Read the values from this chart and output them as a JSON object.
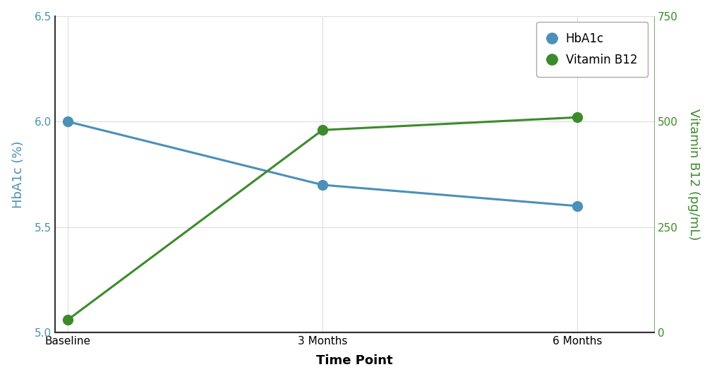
{
  "x_labels": [
    "Baseline",
    "3 Months",
    "6 Months"
  ],
  "x_values": [
    0,
    1,
    2
  ],
  "hba1c_values": [
    6.0,
    5.7,
    5.6
  ],
  "b12_values": [
    30,
    480,
    510
  ],
  "hba1c_color": "#4a90b8",
  "b12_color": "#3a8c2a",
  "hba1c_label": "HbA1c",
  "b12_label": "Vitamin B12",
  "xlabel": "Time Point",
  "ylabel_left": "HbA1c (%)",
  "ylabel_right": "Vitamin B12 (pg/mL)",
  "ylim_left": [
    5.0,
    6.5
  ],
  "ylim_right": [
    0,
    750
  ],
  "yticks_left": [
    5.0,
    5.5,
    6.0,
    6.5
  ],
  "yticks_right": [
    0,
    250,
    500,
    750
  ],
  "background_color": "#ffffff",
  "grid_color": "#dddddd",
  "spine_color": "#333333",
  "marker_size": 10,
  "line_width": 2.2,
  "tick_fontsize": 11,
  "label_fontsize": 13,
  "xlabel_fontweight": "bold"
}
